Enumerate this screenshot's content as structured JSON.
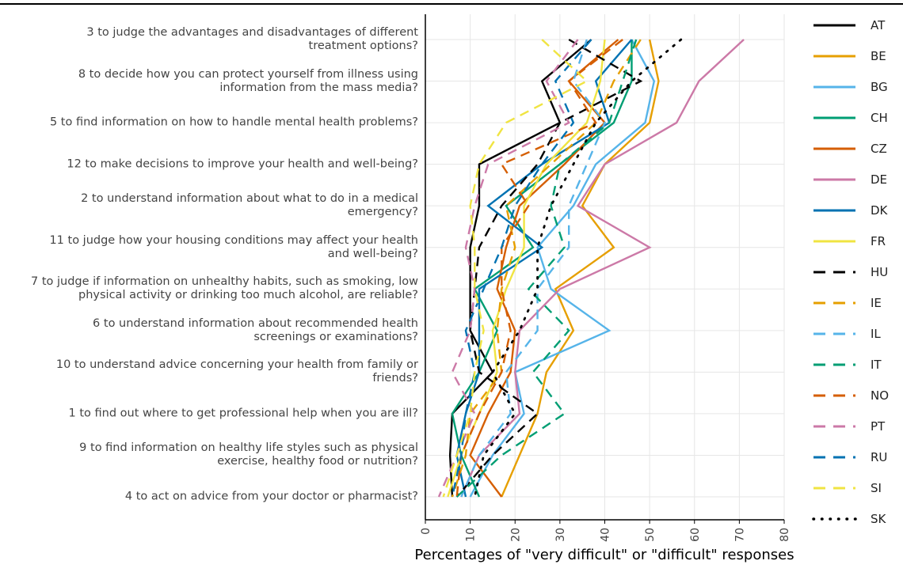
{
  "chart_data": {
    "type": "line",
    "orientation": "horizontal",
    "xlabel": "Percentages of \"very difficult\" or \"difficult\" responses",
    "categories": [
      "3 to judge the advantages and disadvantages of different treatment options?",
      "8 to decide how you can protect yourself from illness using information from the mass media?",
      "5 to find information on how to handle mental health problems?",
      "12 to make decisions to improve your health and well-being?",
      "2 to understand information about what to do in a medical emergency?",
      "11 to judge how your housing conditions may affect your health and well-being?",
      "7 to judge if information on unhealthy habits, such as smoking, low physical activity or drinking too much alcohol, are reliable?",
      "6 to understand information about recommended health screenings or examinations?",
      "10 to understand advice concerning your health from family or friends?",
      "1 to find out where to get professional help when you are ill?",
      "9 to find information on healthy life styles such as physical exercise, healthy food or nutrition?",
      "4 to act on advice from your doctor or pharmacist?"
    ],
    "xlim": [
      0,
      80
    ],
    "xticks": [
      0,
      10,
      20,
      30,
      40,
      50,
      60,
      70,
      80
    ],
    "grid": true,
    "legend": "right",
    "series": [
      {
        "name": "AT",
        "color": "#000000",
        "dash": "solid",
        "values": [
          37,
          26,
          30,
          12,
          12,
          10,
          10,
          10,
          15,
          6,
          5.5,
          6
        ]
      },
      {
        "name": "BE",
        "color": "#E69F00",
        "dash": "solid",
        "values": [
          50,
          52,
          50,
          40,
          35,
          42,
          29,
          33,
          27,
          25,
          21,
          17
        ]
      },
      {
        "name": "BG",
        "color": "#56B4E9",
        "dash": "solid",
        "values": [
          46,
          51,
          49,
          38,
          33,
          25,
          28,
          41,
          20,
          22,
          15,
          10
        ]
      },
      {
        "name": "CH",
        "color": "#009E73",
        "dash": "solid",
        "values": [
          46,
          46,
          42,
          30,
          18,
          24,
          11,
          16,
          12,
          6,
          8,
          12
        ]
      },
      {
        "name": "CZ",
        "color": "#D55E00",
        "dash": "solid",
        "values": [
          43,
          32,
          40,
          31,
          21,
          18,
          16,
          20,
          19,
          14,
          10,
          17
        ]
      },
      {
        "name": "DE",
        "color": "#CC79A7",
        "dash": "solid",
        "values": [
          71,
          61,
          56,
          40,
          34,
          50,
          30,
          21,
          20,
          21,
          12,
          8
        ]
      },
      {
        "name": "DK",
        "color": "#0072B2",
        "dash": "solid",
        "values": [
          46,
          38,
          41,
          26,
          14,
          26,
          12,
          12,
          12,
          9,
          7,
          9
        ]
      },
      {
        "name": "FR",
        "color": "#F0E442",
        "dash": "solid",
        "values": [
          40,
          39,
          36,
          27,
          22,
          22,
          18,
          15,
          16,
          12,
          8,
          5
        ]
      },
      {
        "name": "HU",
        "color": "#000000",
        "dash": "dashed",
        "values": [
          32,
          48,
          30,
          25,
          17,
          12,
          11,
          10,
          12,
          25,
          15,
          7
        ]
      },
      {
        "name": "IE",
        "color": "#E69F00",
        "dash": "dashed",
        "values": [
          48,
          42,
          38,
          28,
          18,
          20,
          17,
          16,
          17,
          10,
          9,
          6
        ]
      },
      {
        "name": "IL",
        "color": "#56B4E9",
        "dash": "dashed",
        "values": [
          36,
          33,
          40,
          36,
          32,
          32,
          25,
          25,
          18,
          19,
          12,
          8
        ]
      },
      {
        "name": "IT",
        "color": "#009E73",
        "dash": "dashed",
        "values": [
          47,
          44,
          41,
          30,
          28,
          31,
          23,
          32,
          24,
          31,
          17,
          7
        ]
      },
      {
        "name": "NO",
        "color": "#D55E00",
        "dash": "dashed",
        "values": [
          44,
          32,
          38,
          17,
          23,
          17,
          17,
          19,
          17,
          12,
          8,
          7
        ]
      },
      {
        "name": "PT",
        "color": "#CC79A7",
        "dash": "dashed",
        "values": [
          34,
          27,
          32,
          14,
          11,
          9,
          11,
          10,
          6,
          11,
          7,
          3
        ]
      },
      {
        "name": "RU",
        "color": "#0072B2",
        "dash": "dashed",
        "values": [
          37,
          29,
          33,
          26,
          20,
          17,
          13,
          9,
          11,
          9,
          8,
          6
        ]
      },
      {
        "name": "SI",
        "color": "#F0E442",
        "dash": "dashed",
        "values": [
          26,
          36,
          18,
          12,
          10,
          11,
          11,
          13,
          11,
          10,
          7,
          4
        ]
      },
      {
        "name": "SK",
        "color": "#000000",
        "dash": "dotted",
        "values": [
          57,
          46,
          38,
          33,
          28,
          25,
          25,
          21,
          15,
          20,
          13,
          11
        ]
      }
    ]
  }
}
